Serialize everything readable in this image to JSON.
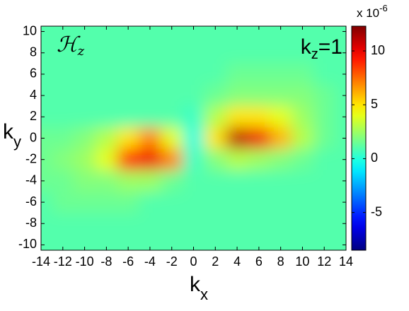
{
  "chart_data": {
    "type": "heatmap",
    "annotations": [
      {
        "text": "ℋ",
        "subscript": "z"
      },
      {
        "text": "k",
        "subscript": "z",
        "suffix": "=1"
      }
    ],
    "xlabel": {
      "text": "k",
      "subscript": "x"
    },
    "ylabel": {
      "text": "k",
      "subscript": "y"
    },
    "x": [
      -14,
      -12,
      -10,
      -8,
      -6,
      -4,
      -2,
      0,
      2,
      4,
      6,
      8,
      10,
      12,
      14
    ],
    "y": [
      10,
      8,
      6,
      4,
      2,
      0,
      -2,
      -4,
      -6,
      -8,
      -10
    ],
    "z": [
      [
        1,
        1,
        1,
        1,
        1,
        1,
        1,
        1,
        1,
        1,
        1,
        1,
        1,
        1,
        1
      ],
      [
        1,
        1,
        1,
        1,
        1,
        1,
        1,
        1,
        1,
        1,
        1,
        1,
        1,
        1,
        1
      ],
      [
        1,
        1,
        1,
        1,
        1,
        1,
        1,
        1,
        1,
        1.5,
        1.5,
        1.5,
        1.5,
        1,
        1
      ],
      [
        1,
        1,
        1,
        1,
        1,
        1,
        1,
        1,
        1.5,
        2,
        2,
        2,
        2,
        1.5,
        1
      ],
      [
        1,
        1,
        1,
        1,
        1,
        1,
        1,
        0.5,
        3,
        5,
        5,
        4,
        2.5,
        1.5,
        1
      ],
      [
        1.5,
        1.5,
        2,
        3,
        5,
        7,
        4,
        0,
        5,
        11,
        10,
        6,
        3,
        1.5,
        1
      ],
      [
        1.5,
        2,
        2.5,
        4,
        9,
        10,
        7,
        0.5,
        2,
        3,
        2.5,
        2,
        1.5,
        1,
        1
      ],
      [
        1.5,
        1.5,
        2,
        2,
        2.5,
        2.5,
        1.5,
        1,
        1,
        1,
        1,
        1,
        1,
        1,
        1
      ],
      [
        1,
        1.5,
        1.5,
        1.5,
        1.5,
        1,
        1,
        1,
        1,
        1,
        1,
        1,
        1,
        1,
        1
      ],
      [
        1,
        1,
        1,
        1,
        1,
        1,
        1,
        1,
        1,
        1,
        1,
        1,
        1,
        1,
        1
      ],
      [
        1,
        1,
        1,
        1,
        1,
        1,
        1,
        1,
        1,
        1,
        1,
        1,
        1,
        1,
        1
      ]
    ],
    "xlim": [
      -14,
      14
    ],
    "ylim": [
      -10.5,
      10.5
    ],
    "xticks": [
      -14,
      -12,
      -10,
      -8,
      -6,
      -4,
      -2,
      0,
      2,
      4,
      6,
      8,
      10,
      12,
      14
    ],
    "yticks": [
      -10,
      -8,
      -6,
      -4,
      -2,
      0,
      2,
      4,
      6,
      8,
      10
    ],
    "colormap": "jet",
    "clim": [
      -8.5,
      12.3
    ],
    "cticks": [
      -5,
      0,
      5,
      10
    ],
    "cmultiplier": {
      "text": "x 10",
      "superscript": "-6"
    }
  }
}
